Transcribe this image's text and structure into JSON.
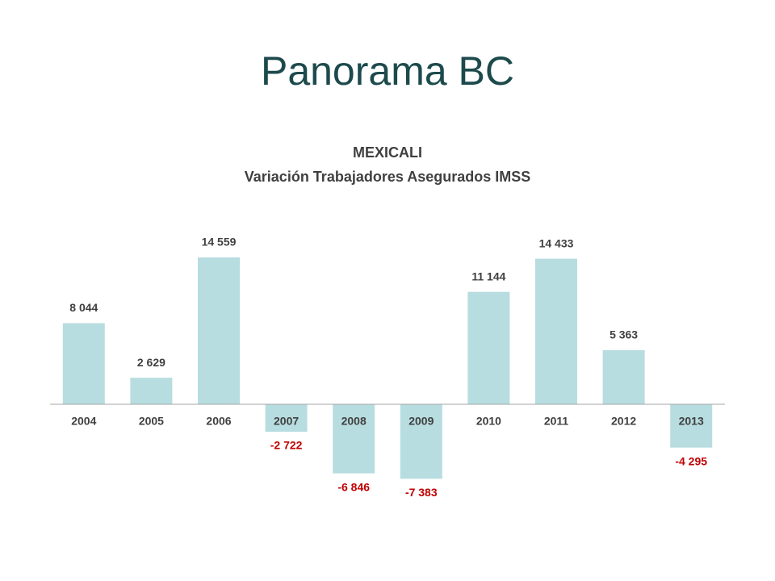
{
  "header": {
    "title": "Panorama BC"
  },
  "chart_data": {
    "type": "bar",
    "title": "MEXICALI",
    "subtitle": "Variación Trabajadores Asegurados IMSS",
    "categories": [
      "2004",
      "2005",
      "2006",
      "2007",
      "2008",
      "2009",
      "2010",
      "2011",
      "2012",
      "2013"
    ],
    "values": [
      8044,
      2629,
      14559,
      -2722,
      -6846,
      -7383,
      11144,
      14433,
      5363,
      -4295
    ],
    "value_labels": [
      "8 044",
      "2 629",
      "14 559",
      "-2 722",
      "-6 846",
      "-7 383",
      "11 144",
      "14 433",
      "5 363",
      "-4 295"
    ],
    "color": "#b7dde0",
    "label_color": "#404040",
    "negative_label_color": "#c00000",
    "ylim": [
      -10000,
      16000
    ],
    "grid": false
  }
}
